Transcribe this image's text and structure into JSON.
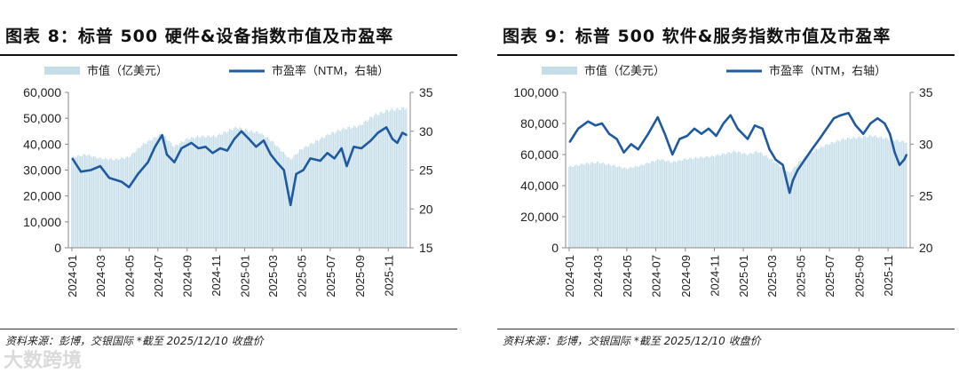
{
  "figures": [
    {
      "title": "图表 8：标普 500 硬件&设备指数市值及市盈率",
      "source": "资料来源：彭博，交银国际    *截至 2025/12/10 收盘价"
    },
    {
      "title": "图表 9：标普 500 软件&服务指数市值及市盈率",
      "source": "资料来源：彭博，交银国际    *截至 2025/12/10 收盘价"
    }
  ],
  "watermark": "大数跨境",
  "colors": {
    "bar": "#c5dde8",
    "line": "#1f5aa0",
    "axis": "#888888"
  },
  "chart_data": [
    {
      "type": "bar+line",
      "title": "图表 8：标普 500 硬件&设备指数市值及市盈率",
      "legend": [
        "市值（亿美元）",
        "市盈率（NTM，右轴）"
      ],
      "legend_position": "top",
      "grid": false,
      "x_ticks": [
        "2024-01",
        "2024-03",
        "2024-05",
        "2024-07",
        "2024-09",
        "2024-11",
        "2025-01",
        "2025-03",
        "2025-05",
        "2025-07",
        "2025-09",
        "2025-11"
      ],
      "y_left": {
        "min": 0,
        "max": 60000,
        "ticks": [
          "0",
          "10,000",
          "20,000",
          "30,000",
          "40,000",
          "50,000",
          "60,000"
        ]
      },
      "y_right": {
        "min": 15,
        "max": 35,
        "ticks": [
          "15",
          "20",
          "25",
          "30",
          "35"
        ]
      },
      "series": [
        {
          "name": "市值（亿美元）",
          "axis": "left",
          "kind": "bar",
          "points": [
            [
              "2024-01-02",
              35000
            ],
            [
              "2024-02-01",
              36000
            ],
            [
              "2024-03-01",
              34500
            ],
            [
              "2024-04-01",
              34000
            ],
            [
              "2024-05-01",
              35000
            ],
            [
              "2024-06-01",
              40000
            ],
            [
              "2024-07-10",
              44000
            ],
            [
              "2024-08-05",
              39000
            ],
            [
              "2024-09-01",
              42000
            ],
            [
              "2024-10-01",
              43000
            ],
            [
              "2024-11-01",
              43000
            ],
            [
              "2024-12-15",
              46500
            ],
            [
              "2025-01-10",
              45000
            ],
            [
              "2025-02-01",
              44500
            ],
            [
              "2025-03-01",
              41000
            ],
            [
              "2025-04-08",
              34000
            ],
            [
              "2025-05-01",
              38000
            ],
            [
              "2025-06-01",
              41000
            ],
            [
              "2025-07-01",
              44000
            ],
            [
              "2025-08-01",
              46000
            ],
            [
              "2025-09-01",
              47000
            ],
            [
              "2025-10-01",
              51000
            ],
            [
              "2025-11-01",
              53000
            ],
            [
              "2025-12-10",
              54000
            ]
          ]
        },
        {
          "name": "市盈率（NTM，右轴）",
          "axis": "right",
          "kind": "line",
          "points": [
            [
              "2024-01-02",
              26.5
            ],
            [
              "2024-01-20",
              24.8
            ],
            [
              "2024-02-10",
              25.0
            ],
            [
              "2024-03-01",
              25.5
            ],
            [
              "2024-03-20",
              24.0
            ],
            [
              "2024-04-15",
              23.5
            ],
            [
              "2024-05-01",
              22.8
            ],
            [
              "2024-05-20",
              24.5
            ],
            [
              "2024-06-10",
              26.0
            ],
            [
              "2024-06-25",
              28.0
            ],
            [
              "2024-07-10",
              29.5
            ],
            [
              "2024-07-20",
              27.0
            ],
            [
              "2024-08-05",
              26.0
            ],
            [
              "2024-08-20",
              27.8
            ],
            [
              "2024-09-10",
              28.5
            ],
            [
              "2024-09-25",
              27.8
            ],
            [
              "2024-10-10",
              28.0
            ],
            [
              "2024-10-25",
              27.2
            ],
            [
              "2024-11-10",
              27.8
            ],
            [
              "2024-11-25",
              27.5
            ],
            [
              "2024-12-10",
              29.0
            ],
            [
              "2024-12-25",
              30.0
            ],
            [
              "2025-01-10",
              29.0
            ],
            [
              "2025-01-25",
              28.0
            ],
            [
              "2025-02-10",
              28.8
            ],
            [
              "2025-02-25",
              27.0
            ],
            [
              "2025-03-10",
              26.0
            ],
            [
              "2025-03-25",
              25.0
            ],
            [
              "2025-04-08",
              20.5
            ],
            [
              "2025-04-20",
              24.5
            ],
            [
              "2025-05-05",
              25.0
            ],
            [
              "2025-05-20",
              26.5
            ],
            [
              "2025-06-10",
              26.2
            ],
            [
              "2025-06-25",
              27.2
            ],
            [
              "2025-07-10",
              26.5
            ],
            [
              "2025-07-25",
              27.8
            ],
            [
              "2025-08-05",
              25.5
            ],
            [
              "2025-08-20",
              28.0
            ],
            [
              "2025-09-05",
              27.8
            ],
            [
              "2025-09-25",
              28.8
            ],
            [
              "2025-10-10",
              29.8
            ],
            [
              "2025-10-28",
              30.5
            ],
            [
              "2025-11-10",
              29.0
            ],
            [
              "2025-11-20",
              28.5
            ],
            [
              "2025-12-01",
              29.8
            ],
            [
              "2025-12-10",
              29.5
            ]
          ]
        }
      ]
    },
    {
      "type": "bar+line",
      "title": "图表 9：标普 500 软件&服务指数市值及市盈率",
      "legend": [
        "市值（亿美元）",
        "市盈率（NTM，右轴）"
      ],
      "legend_position": "top",
      "grid": false,
      "x_ticks": [
        "2024-01",
        "2024-03",
        "2024-05",
        "2024-07",
        "2024-09",
        "2024-11",
        "2025-01",
        "2025-03",
        "2025-05",
        "2025-07",
        "2025-09",
        "2025-11"
      ],
      "y_left": {
        "min": 0,
        "max": 100000,
        "ticks": [
          "0",
          "20,000",
          "40,000",
          "60,000",
          "80,000",
          "100,000"
        ]
      },
      "y_right": {
        "min": 20,
        "max": 35,
        "ticks": [
          "20",
          "25",
          "30",
          "35"
        ]
      },
      "series": [
        {
          "name": "市值（亿美元）",
          "axis": "left",
          "kind": "bar",
          "points": [
            [
              "2024-01-02",
              52000
            ],
            [
              "2024-02-01",
              54000
            ],
            [
              "2024-03-01",
              55000
            ],
            [
              "2024-04-01",
              53000
            ],
            [
              "2024-05-01",
              51000
            ],
            [
              "2024-06-01",
              53000
            ],
            [
              "2024-07-10",
              57000
            ],
            [
              "2024-08-05",
              55000
            ],
            [
              "2024-09-01",
              57000
            ],
            [
              "2024-10-01",
              58000
            ],
            [
              "2024-11-01",
              59000
            ],
            [
              "2024-12-15",
              62000
            ],
            [
              "2025-01-10",
              60000
            ],
            [
              "2025-02-01",
              62000
            ],
            [
              "2025-03-01",
              57000
            ],
            [
              "2025-04-08",
              48000
            ],
            [
              "2025-05-01",
              56000
            ],
            [
              "2025-06-01",
              63000
            ],
            [
              "2025-07-01",
              67000
            ],
            [
              "2025-08-01",
              70000
            ],
            [
              "2025-09-01",
              71000
            ],
            [
              "2025-10-01",
              72000
            ],
            [
              "2025-11-01",
              70000
            ],
            [
              "2025-12-10",
              68000
            ]
          ]
        },
        {
          "name": "市盈率（NTM，右轴）",
          "axis": "right",
          "kind": "line",
          "points": [
            [
              "2024-01-02",
              30.2
            ],
            [
              "2024-01-20",
              31.5
            ],
            [
              "2024-02-10",
              32.2
            ],
            [
              "2024-02-25",
              31.8
            ],
            [
              "2024-03-10",
              32.0
            ],
            [
              "2024-03-25",
              31.0
            ],
            [
              "2024-04-10",
              30.5
            ],
            [
              "2024-04-25",
              29.2
            ],
            [
              "2024-05-10",
              30.0
            ],
            [
              "2024-05-25",
              29.5
            ],
            [
              "2024-06-15",
              31.0
            ],
            [
              "2024-07-05",
              32.6
            ],
            [
              "2024-07-20",
              31.0
            ],
            [
              "2024-08-05",
              29.0
            ],
            [
              "2024-08-20",
              30.5
            ],
            [
              "2024-09-05",
              30.8
            ],
            [
              "2024-09-20",
              31.5
            ],
            [
              "2024-10-05",
              31.0
            ],
            [
              "2024-10-20",
              31.5
            ],
            [
              "2024-11-05",
              30.8
            ],
            [
              "2024-11-20",
              32.0
            ],
            [
              "2024-12-05",
              32.8
            ],
            [
              "2024-12-20",
              31.5
            ],
            [
              "2025-01-10",
              30.5
            ],
            [
              "2025-01-25",
              31.8
            ],
            [
              "2025-02-10",
              31.5
            ],
            [
              "2025-02-25",
              29.5
            ],
            [
              "2025-03-10",
              28.5
            ],
            [
              "2025-03-25",
              28.0
            ],
            [
              "2025-04-08",
              25.3
            ],
            [
              "2025-04-15",
              26.5
            ],
            [
              "2025-04-25",
              27.5
            ],
            [
              "2025-05-10",
              28.5
            ],
            [
              "2025-05-25",
              29.5
            ],
            [
              "2025-06-10",
              30.5
            ],
            [
              "2025-06-25",
              31.5
            ],
            [
              "2025-07-10",
              32.5
            ],
            [
              "2025-07-25",
              32.8
            ],
            [
              "2025-08-10",
              33.0
            ],
            [
              "2025-08-25",
              31.8
            ],
            [
              "2025-09-10",
              31.0
            ],
            [
              "2025-09-25",
              32.0
            ],
            [
              "2025-10-10",
              32.5
            ],
            [
              "2025-10-25",
              32.0
            ],
            [
              "2025-11-05",
              31.0
            ],
            [
              "2025-11-15",
              29.2
            ],
            [
              "2025-11-25",
              28.0
            ],
            [
              "2025-12-05",
              28.5
            ],
            [
              "2025-12-10",
              29.0
            ]
          ]
        }
      ]
    }
  ]
}
